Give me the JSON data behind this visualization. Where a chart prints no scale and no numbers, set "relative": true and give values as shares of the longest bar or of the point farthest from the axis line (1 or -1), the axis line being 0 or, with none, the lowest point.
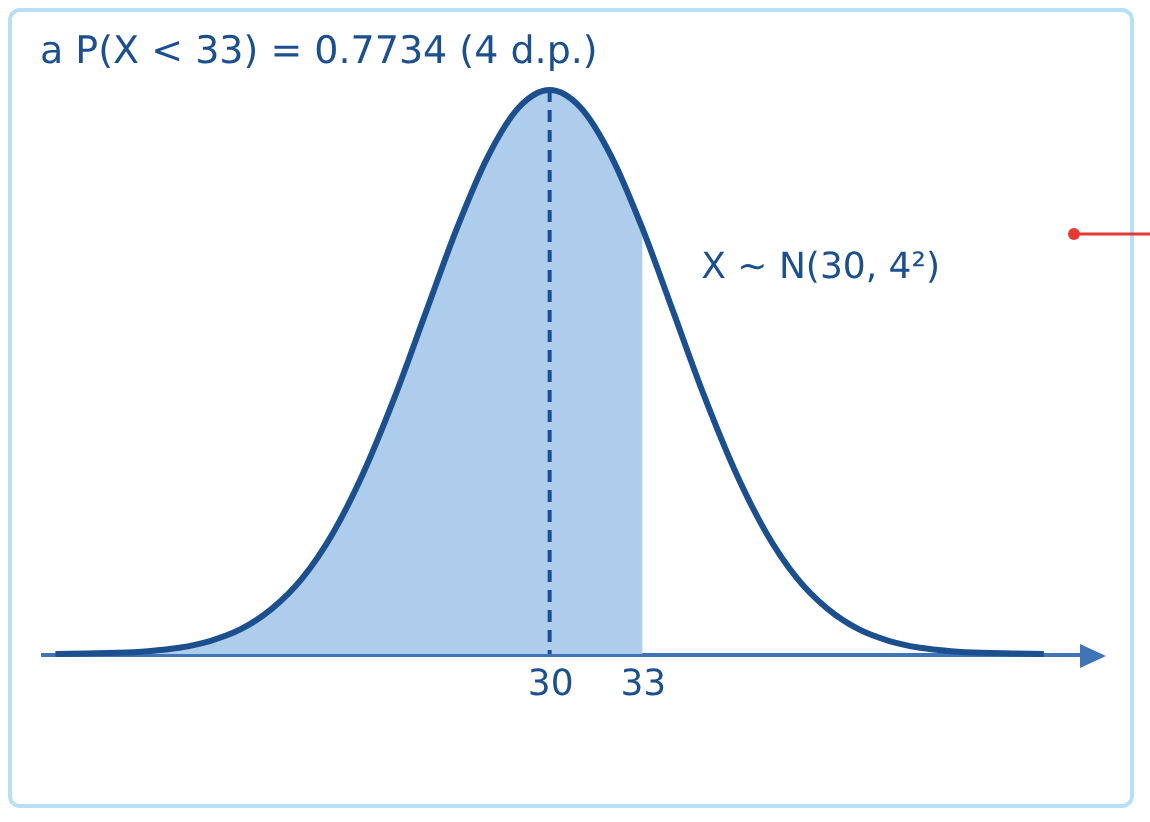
{
  "chart_data": {
    "type": "line",
    "title": "a  P(X < 33) = 0.7734 (4 d.p.)",
    "relative": true,
    "xlim": [
      13.5,
      47.3
    ],
    "xticks": [
      30,
      33
    ],
    "tick_labels": "x",
    "marker": "none",
    "series": [
      {
        "type": "area",
        "color": "#aecdec",
        "x": [
          14,
          15,
          16,
          17,
          18,
          19,
          20,
          21,
          22,
          23,
          24,
          25,
          26,
          27,
          28,
          29,
          30,
          31,
          32,
          33
        ],
        "values": [
          0.0,
          0.001,
          0.002,
          0.005,
          0.011,
          0.023,
          0.044,
          0.08,
          0.135,
          0.216,
          0.325,
          0.458,
          0.607,
          0.755,
          0.882,
          0.969,
          1,
          0.969,
          0.882,
          0.755
        ]
      },
      {
        "name": "X ~ N(30, 4²)",
        "color": "#1c4f8e",
        "line_style": "solid",
        "x": [
          14,
          15,
          16,
          17,
          18,
          19,
          20,
          21,
          22,
          23,
          24,
          25,
          26,
          27,
          28,
          29,
          30,
          31,
          32,
          33,
          34,
          35,
          36,
          37,
          38,
          39,
          40,
          41,
          42,
          43,
          44,
          45,
          46
        ],
        "values": [
          0.0,
          0.001,
          0.002,
          0.005,
          0.011,
          0.023,
          0.044,
          0.08,
          0.135,
          0.216,
          0.325,
          0.458,
          0.607,
          0.755,
          0.882,
          0.969,
          1,
          0.969,
          0.882,
          0.755,
          0.607,
          0.458,
          0.325,
          0.216,
          0.135,
          0.08,
          0.044,
          0.023,
          0.011,
          0.005,
          0.002,
          0.001,
          0.0
        ]
      }
    ],
    "ref_lines": [
      {
        "axis": "x",
        "value": 30,
        "color": "#1c4f8e",
        "line_style": "dashed"
      }
    ]
  }
}
